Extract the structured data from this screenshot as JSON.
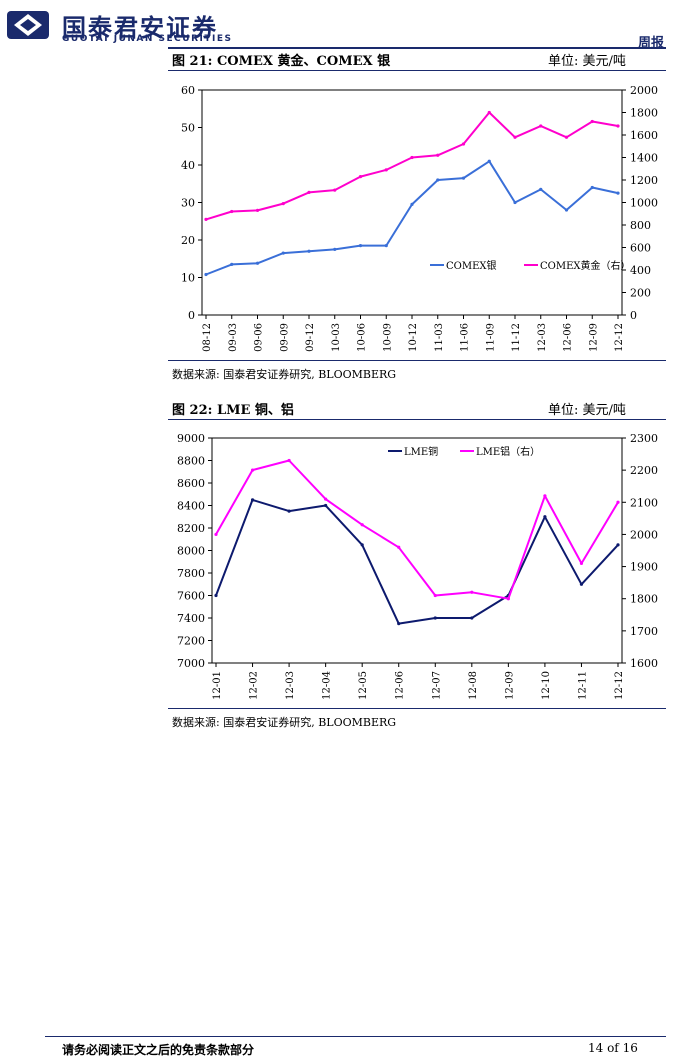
{
  "header": {
    "brand_cn": "国泰君安证券",
    "brand_en": "GUOTAI JUNAN SECURITIES",
    "doc_type": "周报",
    "brand_color": "#1a2a6c"
  },
  "figures": [
    {
      "title": "图 21:  COMEX  黄金、COMEX 银",
      "unit": "单位:  美元/吨",
      "source": "数据来源:  国泰君安证券研究,    BLOOMBERG"
    },
    {
      "title": "图 22:  LME 铜、铝",
      "unit": "单位:  美元/吨",
      "source": "数据来源:  国泰君安证券研究,    BLOOMBERG"
    }
  ],
  "footer": {
    "disclaimer": "请务必阅读正文之后的免责条款部分",
    "page": "14 of 16"
  },
  "chart_data": [
    {
      "type": "line",
      "x": [
        "08-12",
        "09-03",
        "09-06",
        "09-09",
        "09-12",
        "10-03",
        "10-06",
        "10-09",
        "10-12",
        "11-03",
        "11-06",
        "11-09",
        "11-12",
        "12-03",
        "12-06",
        "12-09",
        "12-12"
      ],
      "ylim_left": [
        0,
        60
      ],
      "ylim_right": [
        0,
        2000
      ],
      "yticks_left": [
        0,
        10,
        20,
        30,
        40,
        50,
        60
      ],
      "yticks_right": [
        0,
        200,
        400,
        600,
        800,
        1000,
        1200,
        1400,
        1600,
        1800,
        2000
      ],
      "legend": "inside-bottom-right",
      "series": [
        {
          "name": "COMEX银",
          "axis": "left",
          "color": "#3a6fd8",
          "values": [
            10.8,
            13.5,
            13.8,
            16.5,
            17.0,
            17.5,
            18.5,
            18.5,
            29.5,
            36.0,
            36.5,
            41.0,
            30.0,
            33.5,
            28.0,
            34.0,
            32.5
          ]
        },
        {
          "name": "COMEX黄金（右）",
          "axis": "right",
          "color": "#ff00cc",
          "values": [
            850,
            920,
            930,
            990,
            1090,
            1110,
            1230,
            1290,
            1400,
            1420,
            1520,
            1800,
            1580,
            1680,
            1580,
            1720,
            1680
          ]
        }
      ]
    },
    {
      "type": "line",
      "x": [
        "12-01",
        "12-02",
        "12-03",
        "12-04",
        "12-05",
        "12-06",
        "12-07",
        "12-08",
        "12-09",
        "12-10",
        "12-11",
        "12-12"
      ],
      "ylim_left": [
        7000,
        9000
      ],
      "ylim_right": [
        1600,
        2300
      ],
      "yticks_left": [
        7000,
        7200,
        7400,
        7600,
        7800,
        8000,
        8200,
        8400,
        8600,
        8800,
        9000
      ],
      "yticks_right": [
        1600,
        1700,
        1800,
        1900,
        2000,
        2100,
        2200,
        2300
      ],
      "legend": "inside-top-center",
      "series": [
        {
          "name": "LME铜",
          "axis": "left",
          "color": "#0d1a6e",
          "values": [
            7600,
            8450,
            8350,
            8400,
            8050,
            7350,
            7400,
            7400,
            7600,
            8300,
            7700,
            8050
          ]
        },
        {
          "name": "LME铝（右）",
          "axis": "right",
          "color": "#ff00ff",
          "values": [
            2000,
            2200,
            2230,
            2110,
            2030,
            1960,
            1810,
            1820,
            1800,
            2120,
            1910,
            2100
          ]
        }
      ]
    }
  ]
}
